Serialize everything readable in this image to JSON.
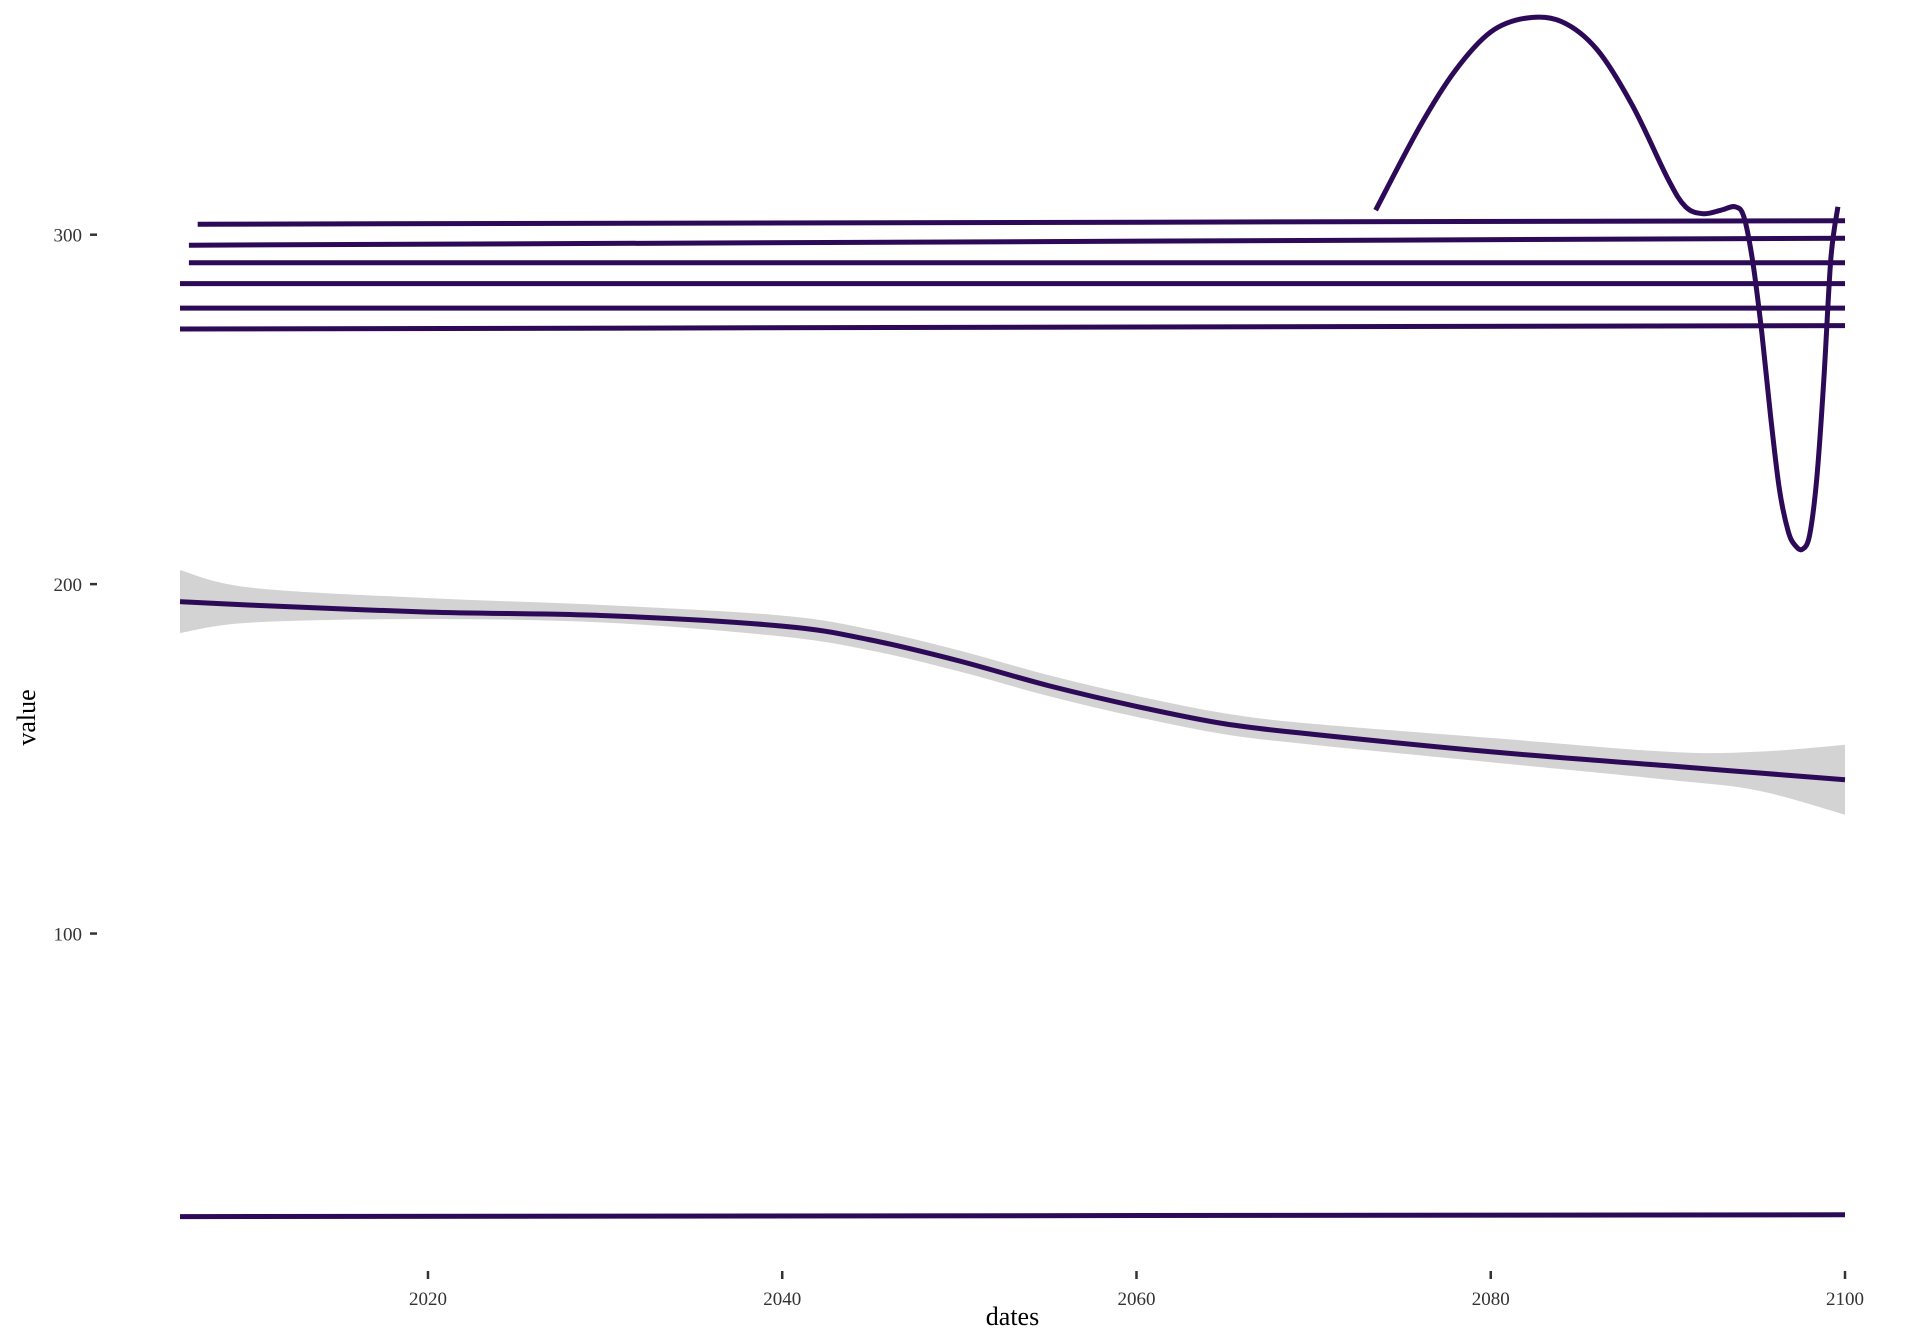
{
  "chart_data": {
    "type": "line",
    "title": "",
    "xlabel": "dates",
    "ylabel": "value",
    "xlim": [
      2006,
      2100
    ],
    "ylim": [
      8,
      350
    ],
    "x_ticks": [
      2020,
      2040,
      2060,
      2080,
      2100
    ],
    "y_ticks": [
      100,
      200,
      300
    ],
    "grid": false,
    "legend": "none",
    "line_color": "#2d0a57",
    "ribbon_color": "#d3d3d3",
    "series": [
      {
        "x": [
          2007,
          2100
        ],
        "y": [
          303,
          304
        ]
      },
      {
        "x": [
          2006.5,
          2100
        ],
        "y": [
          297,
          299
        ]
      },
      {
        "x": [
          2006.5,
          2100
        ],
        "y": [
          292,
          292
        ]
      },
      {
        "x": [
          2006,
          2100
        ],
        "y": [
          286,
          286
        ]
      },
      {
        "x": [
          2006,
          2100
        ],
        "y": [
          279,
          279
        ]
      },
      {
        "x": [
          2006,
          2100
        ],
        "y": [
          273,
          274
        ]
      },
      {
        "x": [
          2006,
          2100
        ],
        "y": [
          19,
          19.5
        ]
      },
      {
        "x": [
          2073.5,
          2076,
          2078,
          2080,
          2082,
          2084,
          2086,
          2088,
          2090,
          2091,
          2092,
          2093,
          2093.8,
          2094.3,
          2094.8,
          2095.3,
          2095.8,
          2096.3,
          2096.8,
          2097.2,
          2097.6,
          2098,
          2098.4,
          2098.8,
          2099.2,
          2099.6
        ],
        "y": [
          307,
          331,
          347,
          358,
          362,
          361,
          353,
          337,
          316,
          308,
          306,
          307,
          308,
          305,
          292,
          272,
          248,
          227,
          215,
          211,
          210,
          214,
          230,
          258,
          293,
          308
        ]
      },
      {
        "x": [
          2006,
          2010,
          2020,
          2030,
          2040,
          2045,
          2050,
          2055,
          2060,
          2065,
          2070,
          2080,
          2090,
          2095,
          2100
        ],
        "y": [
          195,
          194,
          192,
          191,
          188,
          184,
          178,
          171,
          165,
          160,
          157,
          152,
          148,
          146,
          144
        ],
        "band_lower": [
          186,
          189,
          190,
          189,
          185,
          181,
          175,
          168,
          162,
          157,
          154,
          149,
          144,
          141,
          134
        ],
        "band_upper": [
          204,
          199,
          196,
          194,
          191,
          187,
          181,
          174,
          168,
          163,
          160,
          156,
          152,
          152,
          154
        ]
      }
    ]
  }
}
